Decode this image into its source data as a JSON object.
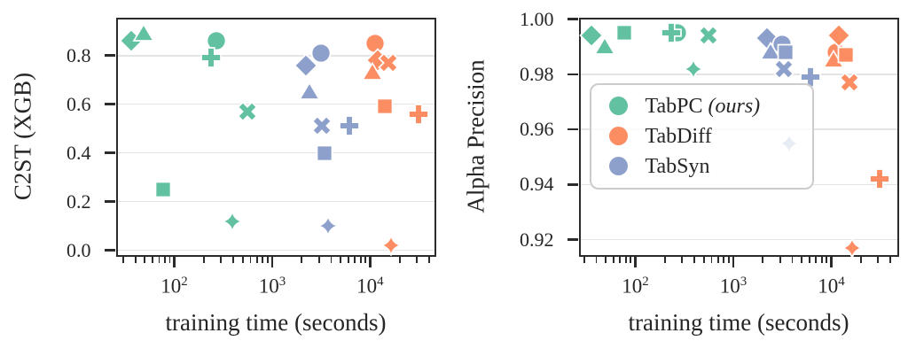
{
  "colors": {
    "TabPC": "#62c1a0",
    "TabDiff": "#fc8d62",
    "TabSyn": "#8da0cb",
    "grid": "#e4e4e4",
    "spine": "#2b2b2b",
    "text": "#262626",
    "marker_edge": "#ffffff",
    "legend_border": "#cccccc"
  },
  "legend": {
    "entries": [
      {
        "name": "TabPC ",
        "suffix": "(ours)",
        "color": "#62c1a0"
      },
      {
        "name": "TabDiff",
        "suffix": "",
        "color": "#fc8d62"
      },
      {
        "name": "TabSyn",
        "suffix": "",
        "color": "#8da0cb"
      }
    ]
  },
  "chart_data": [
    {
      "type": "scatter",
      "title": "",
      "xlabel": "training time (seconds)",
      "ylabel": "C2ST (XGB)",
      "xscale": "log",
      "xlim": [
        26.3,
        45000
      ],
      "ylim": [
        -0.018,
        0.95
      ],
      "xticks": [
        100,
        1000,
        10000
      ],
      "xtick_labels": [
        "10^2",
        "10^3",
        "10^4"
      ],
      "yticks": [
        0.0,
        0.2,
        0.4,
        0.6,
        0.8
      ],
      "ytick_labels": [
        "0.0",
        "0.2",
        "0.4",
        "0.6",
        "0.8"
      ],
      "grid": "horizontal",
      "points": [
        {
          "series": "TabPC",
          "marker": "diamond",
          "x": 36,
          "y": 0.86
        },
        {
          "series": "TabPC",
          "marker": "triangle",
          "x": 49,
          "y": 0.89
        },
        {
          "series": "TabPC",
          "marker": "circle",
          "x": 270,
          "y": 0.86
        },
        {
          "series": "TabPC",
          "marker": "plus",
          "x": 235,
          "y": 0.79
        },
        {
          "series": "TabPC",
          "marker": "x",
          "x": 560,
          "y": 0.57
        },
        {
          "series": "TabPC",
          "marker": "square",
          "x": 77,
          "y": 0.25
        },
        {
          "series": "TabPC",
          "marker": "star",
          "x": 395,
          "y": 0.12
        },
        {
          "series": "TabSyn",
          "marker": "circle",
          "x": 3150,
          "y": 0.81
        },
        {
          "series": "TabSyn",
          "marker": "diamond",
          "x": 2200,
          "y": 0.76
        },
        {
          "series": "TabSyn",
          "marker": "triangle",
          "x": 2400,
          "y": 0.65
        },
        {
          "series": "TabSyn",
          "marker": "x",
          "x": 3250,
          "y": 0.51
        },
        {
          "series": "TabSyn",
          "marker": "plus",
          "x": 6100,
          "y": 0.51
        },
        {
          "series": "TabSyn",
          "marker": "square",
          "x": 3400,
          "y": 0.4
        },
        {
          "series": "TabSyn",
          "marker": "star",
          "x": 3700,
          "y": 0.1
        },
        {
          "series": "TabDiff",
          "marker": "circle",
          "x": 11300,
          "y": 0.85
        },
        {
          "series": "TabDiff",
          "marker": "diamond",
          "x": 12000,
          "y": 0.78
        },
        {
          "series": "TabDiff",
          "marker": "x",
          "x": 15500,
          "y": 0.77
        },
        {
          "series": "TabDiff",
          "marker": "triangle",
          "x": 10500,
          "y": 0.73
        },
        {
          "series": "TabDiff",
          "marker": "square",
          "x": 14000,
          "y": 0.59
        },
        {
          "series": "TabDiff",
          "marker": "plus",
          "x": 31000,
          "y": 0.56
        },
        {
          "series": "TabDiff",
          "marker": "star",
          "x": 16200,
          "y": 0.02
        }
      ]
    },
    {
      "type": "scatter",
      "title": "",
      "xlabel": "training time (seconds)",
      "ylabel": "Alpha Precision",
      "xscale": "log",
      "xlim": [
        27.5,
        46800
      ],
      "ylim": [
        0.9146,
        1.0
      ],
      "xticks": [
        100,
        1000,
        10000
      ],
      "xtick_labels": [
        "10^2",
        "10^3",
        "10^4"
      ],
      "yticks": [
        0.92,
        0.94,
        0.96,
        0.98,
        1.0
      ],
      "ytick_labels": [
        "0.92",
        "0.94",
        "0.96",
        "0.98",
        "1.00"
      ],
      "grid": "horizontal",
      "points": [
        {
          "series": "TabPC",
          "marker": "diamond",
          "x": 36,
          "y": 0.994
        },
        {
          "series": "TabPC",
          "marker": "triangle",
          "x": 49,
          "y": 0.99
        },
        {
          "series": "TabPC",
          "marker": "square",
          "x": 77,
          "y": 0.995
        },
        {
          "series": "TabPC",
          "marker": "circle",
          "x": 270,
          "y": 0.995
        },
        {
          "series": "TabPC",
          "marker": "plus",
          "x": 235,
          "y": 0.995
        },
        {
          "series": "TabPC",
          "marker": "x",
          "x": 560,
          "y": 0.994
        },
        {
          "series": "TabPC",
          "marker": "star",
          "x": 395,
          "y": 0.982
        },
        {
          "series": "TabSyn",
          "marker": "diamond",
          "x": 2200,
          "y": 0.993
        },
        {
          "series": "TabSyn",
          "marker": "circle",
          "x": 3150,
          "y": 0.991
        },
        {
          "series": "TabSyn",
          "marker": "triangle",
          "x": 2400,
          "y": 0.988
        },
        {
          "series": "TabSyn",
          "marker": "square",
          "x": 3400,
          "y": 0.988
        },
        {
          "series": "TabSyn",
          "marker": "x",
          "x": 3250,
          "y": 0.982
        },
        {
          "series": "TabSyn",
          "marker": "plus",
          "x": 6100,
          "y": 0.979
        },
        {
          "series": "TabSyn",
          "marker": "star",
          "x": 3700,
          "y": 0.955
        },
        {
          "series": "TabDiff",
          "marker": "circle",
          "x": 11300,
          "y": 0.988
        },
        {
          "series": "TabDiff",
          "marker": "diamond",
          "x": 12000,
          "y": 0.994
        },
        {
          "series": "TabDiff",
          "marker": "triangle",
          "x": 10500,
          "y": 0.985
        },
        {
          "series": "TabDiff",
          "marker": "square",
          "x": 14000,
          "y": 0.987
        },
        {
          "series": "TabDiff",
          "marker": "x",
          "x": 15500,
          "y": 0.977
        },
        {
          "series": "TabDiff",
          "marker": "plus",
          "x": 31000,
          "y": 0.942
        },
        {
          "series": "TabDiff",
          "marker": "star",
          "x": 16200,
          "y": 0.917
        }
      ]
    }
  ]
}
